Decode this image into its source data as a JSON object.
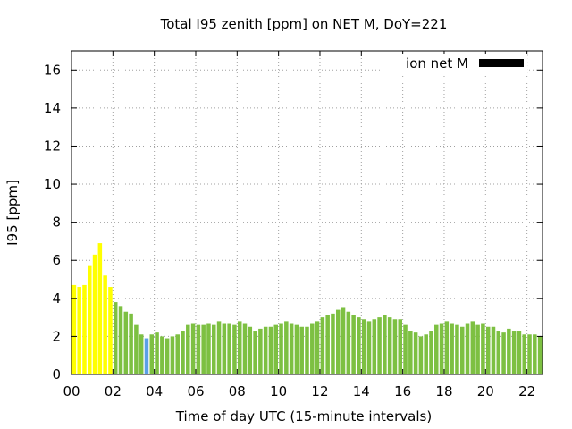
{
  "chart_data": {
    "type": "bar",
    "title": "Total I95 zenith [ppm] on NET M, DoY=221",
    "xlabel": "Time of day UTC (15-minute intervals)",
    "ylabel": "I95 [ppm]",
    "ylim": [
      0,
      17
    ],
    "xlim_hours": [
      0,
      22.75
    ],
    "bin_minutes": 15,
    "grid": true,
    "legend": {
      "position": "top-right",
      "entries": [
        {
          "label": "ion net M",
          "color": "#000000"
        }
      ]
    },
    "x_ticks": [
      "00",
      "02",
      "04",
      "06",
      "08",
      "10",
      "12",
      "14",
      "16",
      "18",
      "20",
      "22"
    ],
    "y_ticks": [
      0,
      2,
      4,
      6,
      8,
      10,
      12,
      14,
      16
    ],
    "colors": {
      "yellow": "#ffff00",
      "green": "#7dc042",
      "blue": "#5aa0e6"
    },
    "values": [
      4.7,
      4.6,
      4.7,
      5.7,
      6.3,
      6.9,
      5.2,
      4.6,
      3.8,
      3.6,
      3.3,
      3.2,
      2.6,
      2.1,
      1.9,
      2.1,
      2.2,
      2.0,
      1.9,
      2.0,
      2.1,
      2.3,
      2.6,
      2.7,
      2.6,
      2.6,
      2.7,
      2.6,
      2.8,
      2.7,
      2.7,
      2.6,
      2.8,
      2.7,
      2.5,
      2.3,
      2.4,
      2.5,
      2.5,
      2.6,
      2.7,
      2.8,
      2.7,
      2.6,
      2.5,
      2.5,
      2.7,
      2.8,
      3.0,
      3.1,
      3.2,
      3.4,
      3.5,
      3.3,
      3.1,
      3.0,
      2.9,
      2.8,
      2.9,
      3.0,
      3.1,
      3.0,
      2.9,
      2.9,
      2.6,
      2.3,
      2.2,
      2.0,
      2.1,
      2.3,
      2.6,
      2.7,
      2.8,
      2.7,
      2.6,
      2.5,
      2.7,
      2.8,
      2.6,
      2.7,
      2.5,
      2.5,
      2.3,
      2.2,
      2.4,
      2.3,
      2.3,
      2.1,
      2.1,
      2.1,
      2.0
    ],
    "bar_colors": [
      "yellow",
      "yellow",
      "yellow",
      "yellow",
      "yellow",
      "yellow",
      "yellow",
      "yellow",
      "green",
      "green",
      "green",
      "green",
      "green",
      "green",
      "blue",
      "green",
      "green",
      "green",
      "green",
      "green",
      "green",
      "green",
      "green",
      "green",
      "green",
      "green",
      "green",
      "green",
      "green",
      "green",
      "green",
      "green",
      "green",
      "green",
      "green",
      "green",
      "green",
      "green",
      "green",
      "green",
      "green",
      "green",
      "green",
      "green",
      "green",
      "green",
      "green",
      "green",
      "green",
      "green",
      "green",
      "green",
      "green",
      "green",
      "green",
      "green",
      "green",
      "green",
      "green",
      "green",
      "green",
      "green",
      "green",
      "green",
      "green",
      "green",
      "green",
      "green",
      "green",
      "green",
      "green",
      "green",
      "green",
      "green",
      "green",
      "green",
      "green",
      "green",
      "green",
      "green",
      "green",
      "green",
      "green",
      "green",
      "green",
      "green",
      "green",
      "green",
      "green",
      "green",
      "green"
    ]
  }
}
